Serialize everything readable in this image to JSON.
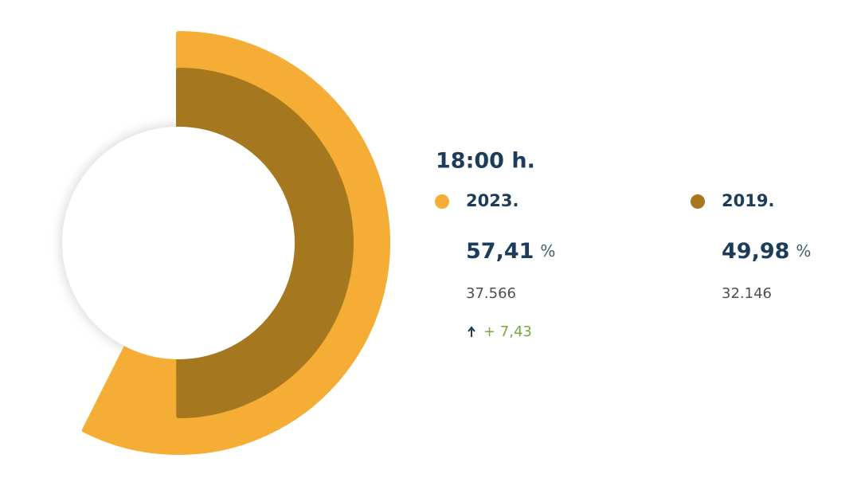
{
  "chart_data": {
    "type": "radial-bar",
    "title": "18:00 h.",
    "unit": "%",
    "vlim": [
      0,
      100
    ],
    "series": [
      {
        "name": "2023.",
        "color": "#f5ad35",
        "values": [
          57.41
        ],
        "value_labels": [
          "57,41"
        ],
        "count": "37.566",
        "change": "+ 7,43"
      },
      {
        "name": "2019.",
        "color": "#a5771f",
        "values": [
          49.98
        ],
        "value_labels": [
          "49,98"
        ],
        "count": "32.146"
      }
    ]
  }
}
